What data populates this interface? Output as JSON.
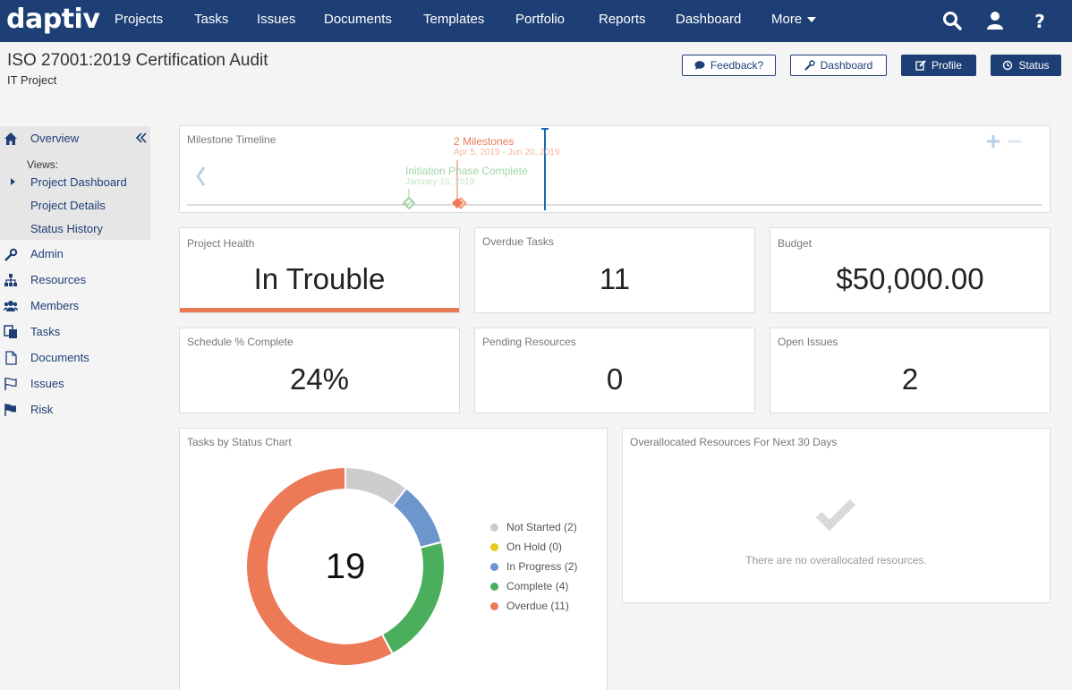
{
  "app": {
    "logo": "daptiv",
    "logo_mark": "."
  },
  "nav": {
    "items": [
      "Projects",
      "Tasks",
      "Issues",
      "Documents",
      "Templates",
      "Portfolio",
      "Reports",
      "Dashboard",
      "More"
    ]
  },
  "header": {
    "title": "ISO 27001:2019 Certification Audit",
    "subtitle": "IT Project",
    "buttons": {
      "feedback": "Feedback?",
      "dashboard": "Dashboard",
      "profile": "Profile",
      "status": "Status"
    }
  },
  "sidebar": {
    "overview": "Overview",
    "views_label": "Views:",
    "views": [
      "Project Dashboard",
      "Project Details",
      "Status History"
    ],
    "items": [
      "Admin",
      "Resources",
      "Members",
      "Tasks",
      "Documents",
      "Issues",
      "Risk"
    ]
  },
  "milestones": {
    "title": "Milestone Timeline",
    "group_label": "2 Milestones",
    "group_dates": "Apr 5, 2019 - Jun 20, 2019",
    "single_label": "Initiation Phase Complete",
    "single_date": "January 18, 2019"
  },
  "kpis": {
    "health": {
      "title": "Project Health",
      "value": "In Trouble"
    },
    "overdue": {
      "title": "Overdue Tasks",
      "value": "11"
    },
    "budget": {
      "title": "Budget",
      "value": "$50,000.00"
    },
    "schedule": {
      "title": "Schedule % Complete",
      "value": "24%"
    },
    "pending": {
      "title": "Pending Resources",
      "value": "0"
    },
    "issues": {
      "title": "Open Issues",
      "value": "2"
    }
  },
  "chart_data": {
    "type": "pie",
    "title": "Tasks by Status Chart",
    "center_label": "19",
    "categories": [
      "Not Started",
      "On Hold",
      "In Progress",
      "Complete",
      "Overdue"
    ],
    "values": [
      2,
      0,
      2,
      4,
      11
    ],
    "legend_labels": [
      "Not Started (2)",
      "On Hold (0)",
      "In Progress (2)",
      "Complete (4)",
      "Overdue (11)"
    ],
    "colors": [
      "#cccccc",
      "#e8c81a",
      "#6c96cc",
      "#4aae5c",
      "#ec7a57"
    ],
    "legend_position": "right"
  },
  "overallocated": {
    "title": "Overallocated Resources For Next 30 Days",
    "message": "There are no overallocated resources."
  },
  "colors": {
    "nav": "#1d3f75",
    "trouble": "#ec7a57",
    "milestone_green": "#9fd4a2",
    "today_line": "#1f68b4"
  }
}
